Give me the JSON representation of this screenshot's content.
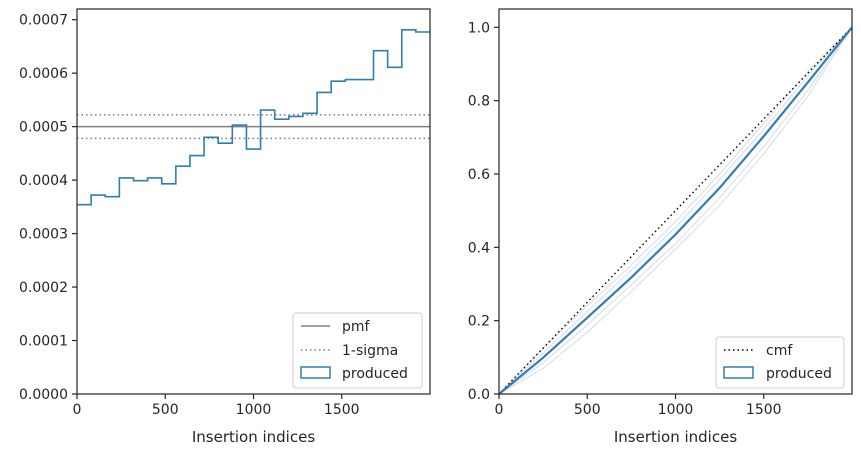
{
  "chart_data": [
    {
      "type": "histogram-step",
      "xlabel": "Insertion indices",
      "ylabel": "",
      "xlim": [
        0,
        2000
      ],
      "ylim": [
        0,
        0.00072
      ],
      "xticks": [
        {
          "value": 0,
          "label": "0"
        },
        {
          "value": 500,
          "label": "500"
        },
        {
          "value": 1000,
          "label": "1000"
        },
        {
          "value": 1500,
          "label": "1500"
        }
      ],
      "yticks": [
        {
          "value": 0,
          "label": "0.0000"
        },
        {
          "value": 0.0001,
          "label": "0.0001"
        },
        {
          "value": 0.0002,
          "label": "0.0002"
        },
        {
          "value": 0.0003,
          "label": "0.0003"
        },
        {
          "value": 0.0004,
          "label": "0.0004"
        },
        {
          "value": 0.0005,
          "label": "0.0005"
        },
        {
          "value": 0.0006,
          "label": "0.0006"
        },
        {
          "value": 0.0007,
          "label": "0.0007"
        }
      ],
      "bin_edges": [
        0,
        80,
        160,
        240,
        320,
        400,
        480,
        560,
        640,
        720,
        800,
        880,
        960,
        1040,
        1120,
        1200,
        1280,
        1360,
        1440,
        1520,
        1600,
        1680,
        1760,
        1840,
        1920,
        2000
      ],
      "values": [
        0.000354,
        0.000372,
        0.000369,
        0.000404,
        0.000399,
        0.000404,
        0.000393,
        0.000426,
        0.000446,
        0.00048,
        0.000469,
        0.000503,
        0.000458,
        0.000531,
        0.000514,
        0.000519,
        0.000525,
        0.000564,
        0.000585,
        0.000588,
        0.000588,
        0.000642,
        0.000611,
        0.000681,
        0.000677
      ],
      "pmf": 0.0005,
      "sigma": [
        0.000478,
        0.000522
      ],
      "colors": {
        "produced": "#2f7eb3",
        "pmf": "#808080",
        "sigma": "#808080"
      },
      "legend": {
        "position": "lower right",
        "entries": [
          {
            "label": "pmf",
            "style": "solid"
          },
          {
            "label": "1-sigma",
            "style": "dotted"
          },
          {
            "label": "produced",
            "style": "patch"
          }
        ]
      }
    },
    {
      "type": "line",
      "xlabel": "Insertion indices",
      "ylabel": "",
      "xlim": [
        0,
        2000
      ],
      "ylim": [
        0,
        1.05
      ],
      "xticks": [
        {
          "value": 0,
          "label": "0"
        },
        {
          "value": 500,
          "label": "500"
        },
        {
          "value": 1000,
          "label": "1000"
        },
        {
          "value": 1500,
          "label": "1500"
        }
      ],
      "yticks": [
        {
          "value": 0,
          "label": "0.0"
        },
        {
          "value": 0.2,
          "label": "0.2"
        },
        {
          "value": 0.4,
          "label": "0.4"
        },
        {
          "value": 0.6,
          "label": "0.6"
        },
        {
          "value": 0.8,
          "label": "0.8"
        },
        {
          "value": 1.0,
          "label": "1.0"
        }
      ],
      "cmf": {
        "x": [
          0,
          2000
        ],
        "y": [
          0,
          1
        ]
      },
      "produced": {
        "x": [
          0,
          250,
          500,
          750,
          1000,
          1250,
          1500,
          1750,
          2000
        ],
        "y": [
          0,
          0.099,
          0.208,
          0.318,
          0.435,
          0.562,
          0.703,
          0.85,
          1.0
        ]
      },
      "bands": [
        {
          "x": [
            0,
            250,
            500,
            750,
            1000,
            1250,
            1500,
            1750,
            2000
          ],
          "y": [
            0,
            0.085,
            0.188,
            0.298,
            0.41,
            0.535,
            0.675,
            0.828,
            1.0
          ]
        },
        {
          "x": [
            0,
            250,
            500,
            750,
            1000,
            1250,
            1500,
            1750,
            2000
          ],
          "y": [
            0,
            0.112,
            0.225,
            0.338,
            0.455,
            0.585,
            0.722,
            0.868,
            1.0
          ]
        },
        {
          "x": [
            0,
            250,
            500,
            750,
            1000,
            1250,
            1500,
            1750,
            2000
          ],
          "y": [
            0,
            0.07,
            0.168,
            0.28,
            0.395,
            0.515,
            0.655,
            0.812,
            1.0
          ]
        },
        {
          "x": [
            0,
            250,
            500,
            750,
            1000,
            1250,
            1500,
            1750,
            2000
          ],
          "y": [
            0,
            0.125,
            0.24,
            0.352,
            0.47,
            0.6,
            0.738,
            0.88,
            1.0
          ]
        }
      ],
      "colors": {
        "produced": "#2f7eb3",
        "cmf": "#000000",
        "bands": "#d5dbe6"
      },
      "legend": {
        "position": "lower right",
        "entries": [
          {
            "label": "cmf",
            "style": "dotted"
          },
          {
            "label": "produced",
            "style": "patch"
          }
        ]
      }
    }
  ]
}
